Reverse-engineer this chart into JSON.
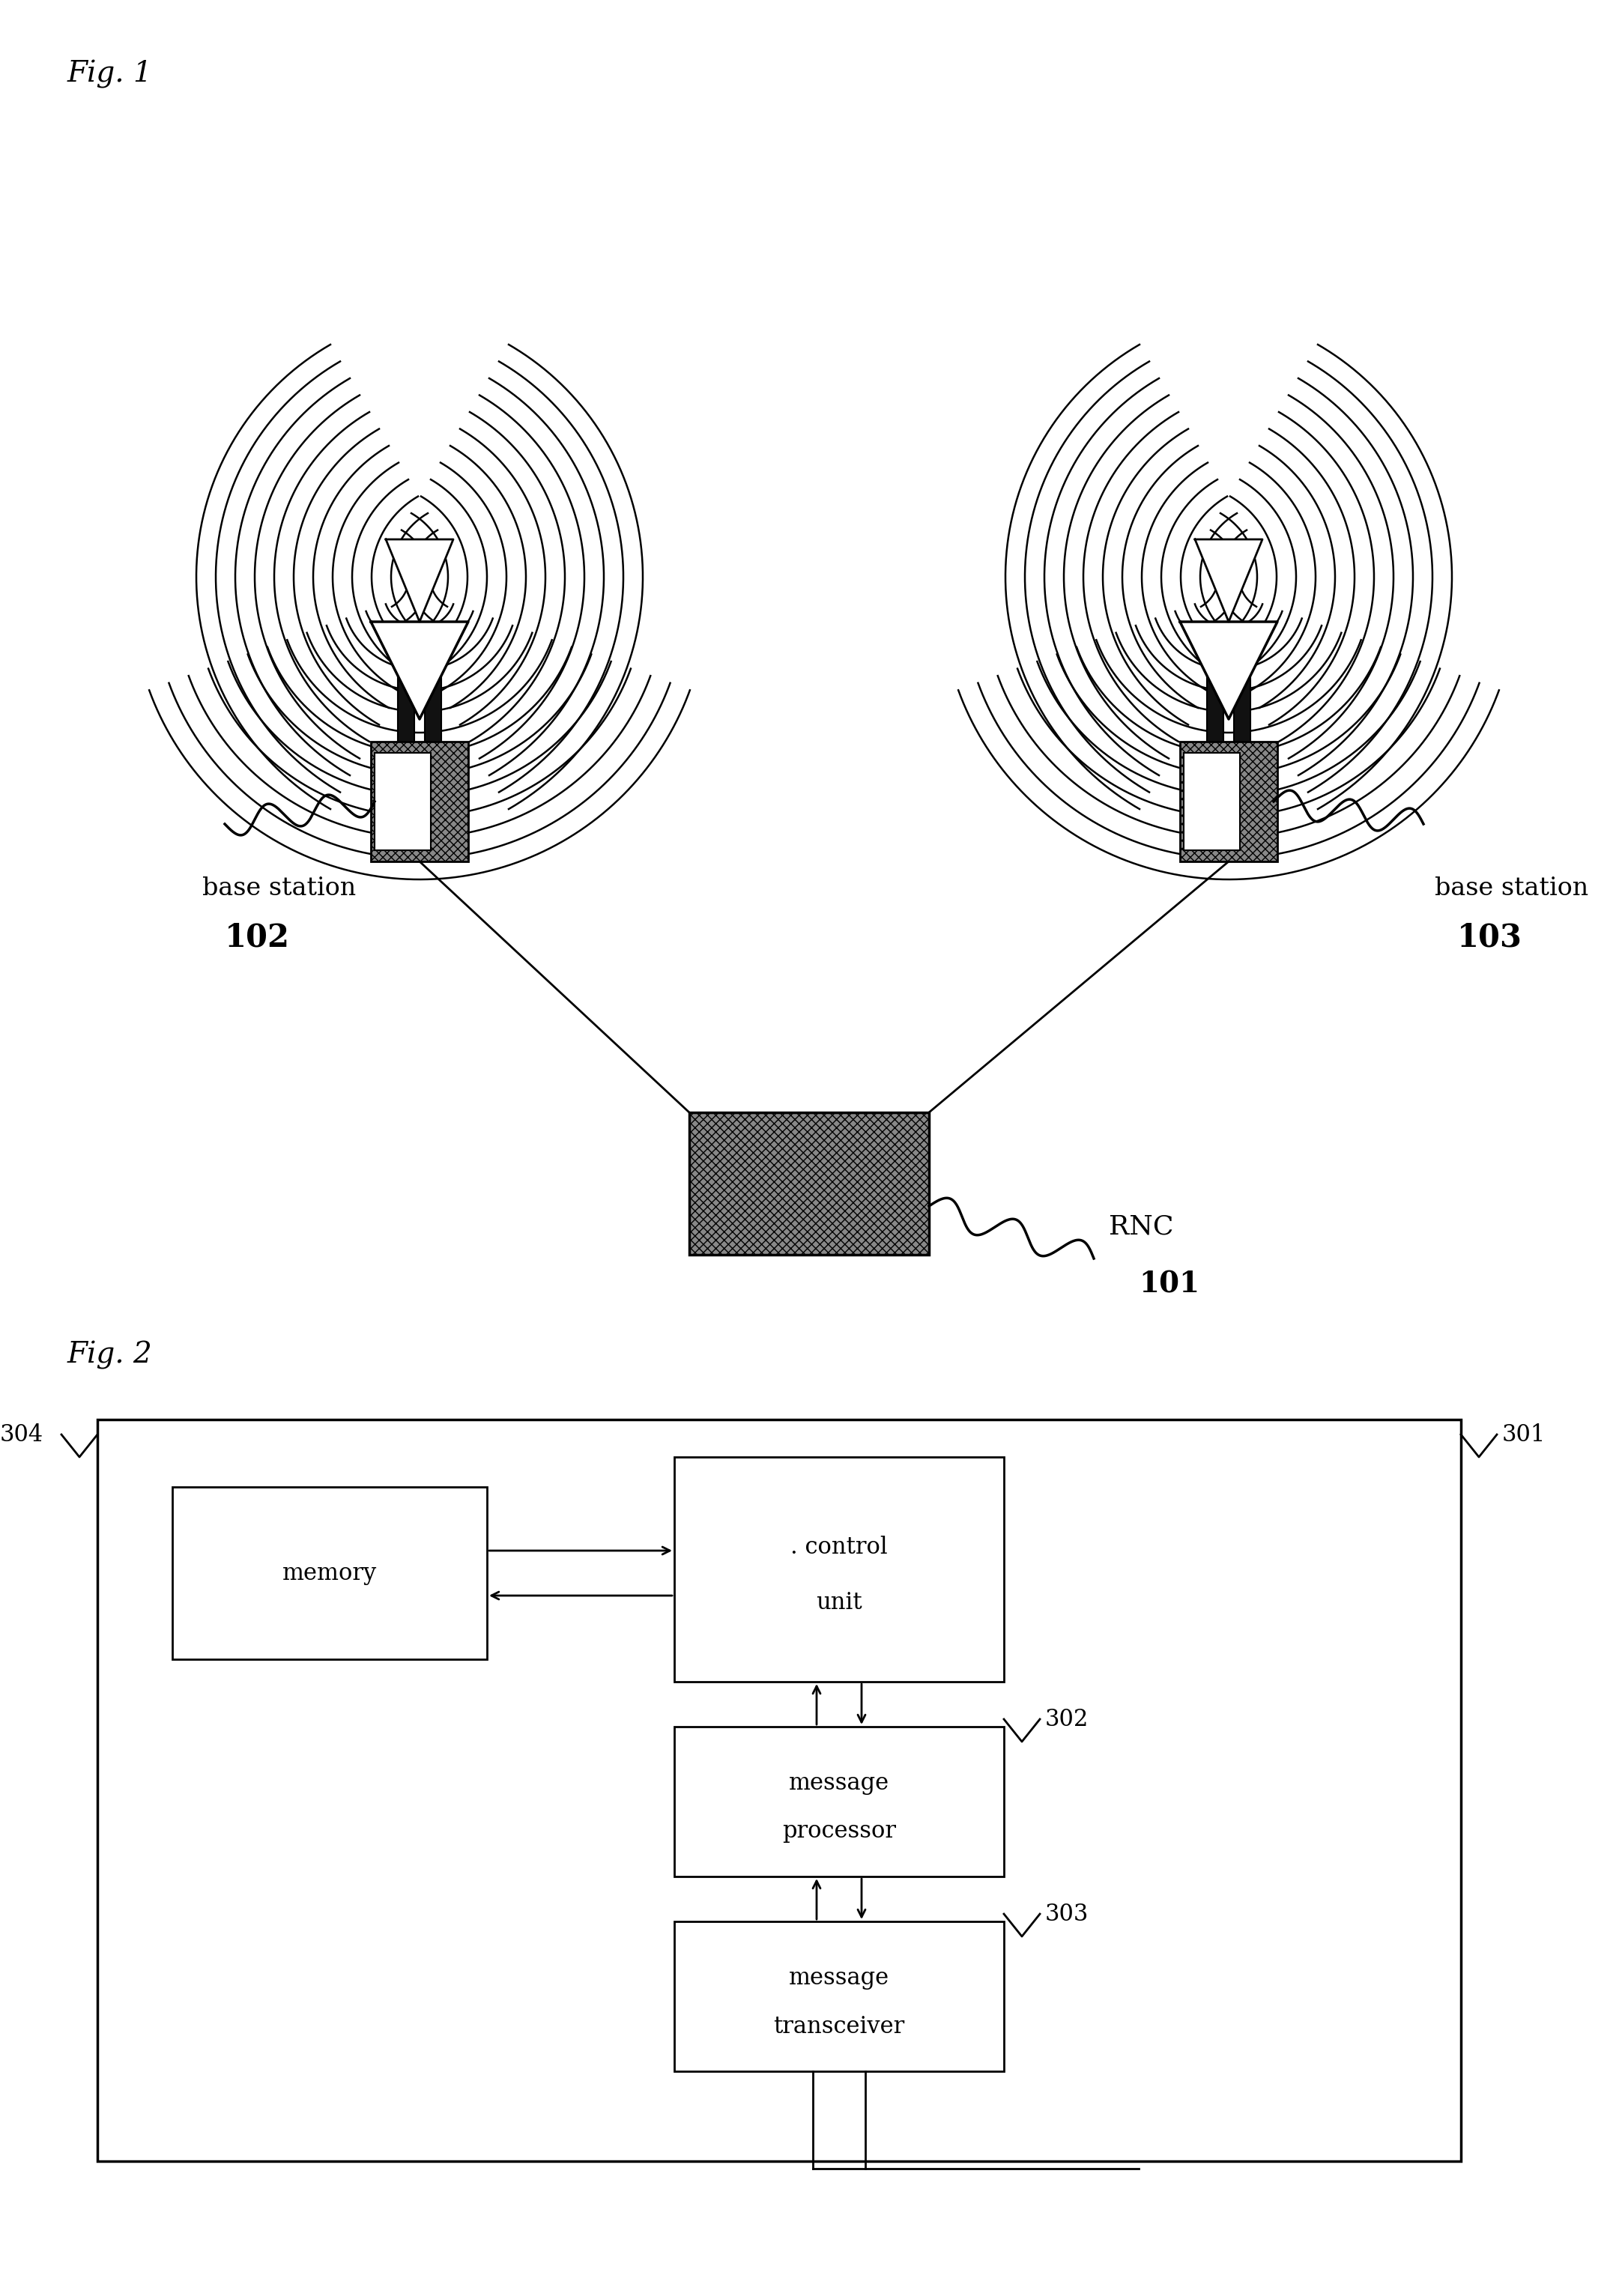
{
  "fig1_label": "Fig. 1",
  "fig2_label": "Fig. 2",
  "bs1_label_line1": "base station",
  "bs1_label_line2": "102",
  "bs2_label_line1": "base station",
  "bs2_label_line2": "103",
  "rnc_label_line1": "RNC",
  "rnc_label_line2": "101",
  "memory_label": "memory",
  "control_label_line1": ". control",
  "control_label_line2": "unit",
  "msg_proc_label_line1": "message",
  "msg_proc_label_line2": "processor",
  "msg_trans_label_line1": "message",
  "msg_trans_label_line2": "transceiver",
  "label_301": "301",
  "label_302": "302",
  "label_303": "303",
  "label_304": "304",
  "bg_color": "#ffffff",
  "line_color": "#000000",
  "rnc_hatch": "xxx",
  "base_hatch": "xxx"
}
